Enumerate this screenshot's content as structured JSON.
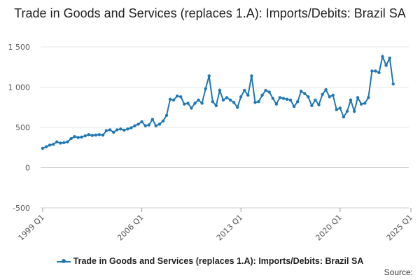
{
  "chart_data": {
    "type": "line",
    "title": "Trade in Goods and Services (replaces 1.A): Imports/Debits: Brazil SA",
    "xlabel": "",
    "ylabel": "",
    "ylim": [
      -500,
      1500
    ],
    "y_ticks": [
      -500,
      0,
      500,
      1000,
      1500
    ],
    "y_tick_labels": [
      "-500",
      "0",
      "500",
      "1 000",
      "1 500"
    ],
    "x_ticks": [
      "1999 Q1",
      "2006 Q1",
      "2013 Q1",
      "2020 Q1",
      "2025 Q1"
    ],
    "grid": true,
    "legend_position": "bottom",
    "series": [
      {
        "name": "Trade in Goods and Services (replaces 1.A): Imports/Debits: Brazil SA",
        "color": "#1f77b4",
        "start": "1999 Q1",
        "frequency": "quarterly",
        "values": [
          240,
          260,
          280,
          290,
          320,
          305,
          310,
          320,
          360,
          385,
          375,
          380,
          395,
          410,
          400,
          405,
          410,
          405,
          460,
          470,
          440,
          470,
          480,
          465,
          480,
          495,
          520,
          540,
          570,
          520,
          530,
          600,
          520,
          540,
          580,
          650,
          850,
          840,
          890,
          880,
          790,
          800,
          740,
          800,
          840,
          800,
          980,
          1140,
          820,
          770,
          960,
          840,
          870,
          840,
          810,
          750,
          880,
          960,
          900,
          1140,
          810,
          820,
          900,
          960,
          940,
          860,
          790,
          870,
          860,
          850,
          840,
          760,
          820,
          950,
          920,
          880,
          770,
          840,
          780,
          910,
          970,
          880,
          900,
          720,
          740,
          630,
          700,
          840,
          700,
          870,
          790,
          800,
          870,
          1200,
          1200,
          1180,
          1380,
          1270,
          1360,
          1040
        ]
      }
    ],
    "source_label": "Source:"
  }
}
